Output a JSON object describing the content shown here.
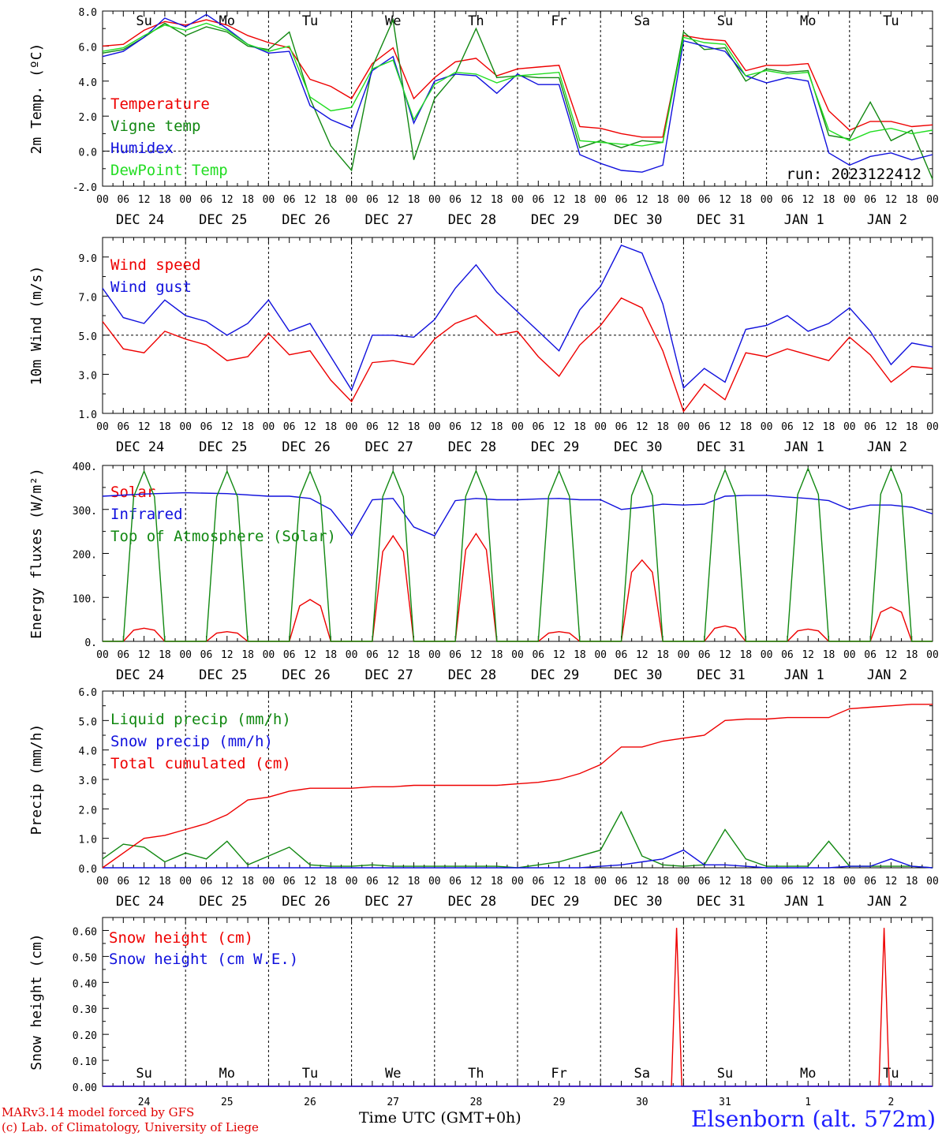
{
  "station": "Elsenborn (alt. 572m)",
  "credit_line1": "MARv3.14 model forced by GFS",
  "credit_line2": "(c) Lab. of Climatology, University of Liege",
  "x_title": "Time UTC (GMT+0h)",
  "run_label": "run: 2023122412",
  "hour_ticks": [
    "00",
    "06",
    "12",
    "18"
  ],
  "final_tick": "00",
  "dates": [
    "DEC 24",
    "DEC 25",
    "DEC 26",
    "DEC 27",
    "DEC 28",
    "DEC 29",
    "DEC 30",
    "DEC 31",
    "JAN  1",
    "JAN  2"
  ],
  "weekdays": [
    {
      "label": "Su",
      "color": "#e00000"
    },
    {
      "label": "Mo",
      "color": "#000000"
    },
    {
      "label": "Tu",
      "color": "#000000"
    },
    {
      "label": "We",
      "color": "#000000"
    },
    {
      "label": "Th",
      "color": "#000000"
    },
    {
      "label": "Fr",
      "color": "#000000"
    },
    {
      "label": "Sa",
      "color": "#e00000"
    },
    {
      "label": "Su",
      "color": "#e00000"
    },
    {
      "label": "Mo",
      "color": "#000000"
    },
    {
      "label": "Tu",
      "color": "#000000"
    }
  ],
  "day_numbers": [
    "24",
    "25",
    "26",
    "27",
    "28",
    "29",
    "30",
    "31",
    "1",
    "2"
  ],
  "colors": {
    "red": "#ee0000",
    "green": "#118811",
    "blue": "#1010dd",
    "lightgreen": "#22dd22"
  },
  "chart_data": [
    {
      "type": "line",
      "ylabel": "2m Temp. (ºC)",
      "ylim": [
        -2,
        8
      ],
      "yticks": [
        -2,
        0,
        2,
        4,
        6,
        8
      ],
      "tick_format": "0.0",
      "dashed_y": 0,
      "x_hours": [
        0,
        6,
        12,
        18,
        24,
        30,
        36,
        42,
        48,
        54,
        60,
        66,
        72,
        78,
        84,
        90,
        96,
        102,
        108,
        114,
        120,
        126,
        132,
        138,
        144,
        150,
        156,
        162,
        168,
        174,
        180,
        186,
        192,
        198,
        204,
        210,
        216,
        222,
        228,
        234,
        240
      ],
      "series": [
        {
          "name": "Temperature",
          "color": "#ee0000",
          "values": [
            6.0,
            6.1,
            6.9,
            7.4,
            7.2,
            7.5,
            7.2,
            6.6,
            6.2,
            5.9,
            4.1,
            3.7,
            3.0,
            5.0,
            5.9,
            3.0,
            4.2,
            5.1,
            5.3,
            4.3,
            4.7,
            4.8,
            4.9,
            1.4,
            1.3,
            1.0,
            0.8,
            0.8,
            6.6,
            6.4,
            6.3,
            4.6,
            4.9,
            4.9,
            5.0,
            2.3,
            1.2,
            1.7,
            1.7,
            1.4,
            1.5
          ]
        },
        {
          "name": "Vigne temp",
          "color": "#118811",
          "values": [
            5.6,
            5.8,
            6.5,
            7.3,
            6.6,
            7.1,
            6.8,
            6.0,
            5.8,
            6.8,
            3.0,
            0.3,
            -1.1,
            4.8,
            7.5,
            -0.5,
            3.0,
            4.4,
            7.0,
            4.2,
            4.3,
            4.2,
            4.2,
            0.2,
            0.6,
            0.2,
            0.6,
            0.5,
            6.8,
            5.8,
            5.9,
            4.0,
            4.7,
            4.5,
            4.6,
            0.9,
            0.7,
            2.8,
            0.6,
            1.2,
            -1.6
          ]
        },
        {
          "name": "Humidex",
          "color": "#1010dd",
          "values": [
            5.4,
            5.7,
            6.5,
            7.6,
            7.1,
            7.8,
            7.0,
            6.1,
            5.6,
            5.7,
            2.6,
            1.8,
            1.3,
            4.6,
            5.4,
            1.6,
            4.0,
            4.4,
            4.3,
            3.3,
            4.4,
            3.8,
            3.8,
            -0.2,
            -0.7,
            -1.1,
            -1.2,
            -0.8,
            6.3,
            6.0,
            5.7,
            4.3,
            3.9,
            4.2,
            4.0,
            -0.1,
            -0.8,
            -0.3,
            -0.1,
            -0.5,
            -0.2
          ]
        },
        {
          "name": "DewPoint Temp",
          "color": "#22dd22",
          "values": [
            5.7,
            5.9,
            6.6,
            7.2,
            6.9,
            7.3,
            6.9,
            6.1,
            5.7,
            6.0,
            3.1,
            2.3,
            2.5,
            4.7,
            5.2,
            1.8,
            3.8,
            4.5,
            4.4,
            3.9,
            4.3,
            4.4,
            4.5,
            0.6,
            0.5,
            0.4,
            0.3,
            0.5,
            6.5,
            6.2,
            6.1,
            4.3,
            4.6,
            4.4,
            4.5,
            1.2,
            0.6,
            1.1,
            1.3,
            1.0,
            1.2
          ]
        }
      ]
    },
    {
      "type": "line",
      "ylabel": "10m Wind (m/s)",
      "ylim": [
        1,
        10
      ],
      "yticks": [
        1,
        3,
        5,
        7,
        9
      ],
      "tick_format": "0.0",
      "dashed_y": 5,
      "x_hours": [
        0,
        6,
        12,
        18,
        24,
        30,
        36,
        42,
        48,
        54,
        60,
        66,
        72,
        78,
        84,
        90,
        96,
        102,
        108,
        114,
        120,
        126,
        132,
        138,
        144,
        150,
        156,
        162,
        168,
        174,
        180,
        186,
        192,
        198,
        204,
        210,
        216,
        222,
        228,
        234,
        240
      ],
      "series": [
        {
          "name": "Wind speed",
          "color": "#ee0000",
          "values": [
            5.7,
            4.3,
            4.1,
            5.2,
            4.8,
            4.5,
            3.7,
            3.9,
            5.1,
            4.0,
            4.2,
            2.7,
            1.6,
            3.6,
            3.7,
            3.5,
            4.8,
            5.6,
            6.0,
            5.0,
            5.2,
            3.9,
            2.9,
            4.5,
            5.5,
            6.9,
            6.4,
            4.2,
            1.1,
            2.5,
            1.7,
            4.1,
            3.9,
            4.3,
            4.0,
            3.7,
            4.9,
            4.0,
            2.6,
            3.4,
            3.3
          ]
        },
        {
          "name": "Wind gust",
          "color": "#1010dd",
          "values": [
            7.4,
            5.9,
            5.6,
            6.8,
            6.0,
            5.7,
            5.0,
            5.6,
            6.8,
            5.2,
            5.6,
            3.9,
            2.2,
            5.0,
            5.0,
            4.9,
            5.8,
            7.4,
            8.6,
            7.2,
            6.2,
            5.2,
            4.2,
            6.3,
            7.5,
            9.6,
            9.2,
            6.6,
            2.3,
            3.3,
            2.6,
            5.3,
            5.5,
            6.0,
            5.2,
            5.6,
            6.4,
            5.2,
            3.5,
            4.6,
            4.4
          ]
        }
      ]
    },
    {
      "type": "line",
      "ylabel": "Energy fluxes (W/m²)",
      "ylim": [
        0,
        400
      ],
      "yticks": [
        0,
        100,
        200,
        300,
        400
      ],
      "tick_format": "100.",
      "dashed_y": null,
      "series": [
        {
          "name": "Solar",
          "color": "#ee0000",
          "peaks": [
            30,
            22,
            95,
            240,
            245,
            22,
            185,
            35,
            28,
            78
          ]
        },
        {
          "name": "Infrared",
          "color": "#1010dd",
          "x_hours": [
            0,
            12,
            24,
            36,
            48,
            54,
            60,
            66,
            72,
            78,
            84,
            90,
            96,
            102,
            108,
            114,
            120,
            126,
            132,
            138,
            144,
            150,
            156,
            162,
            168,
            174,
            180,
            186,
            192,
            198,
            204,
            210,
            216,
            222,
            228,
            234,
            240
          ],
          "values": [
            330,
            335,
            338,
            336,
            330,
            330,
            325,
            300,
            240,
            322,
            325,
            260,
            240,
            320,
            325,
            322,
            322,
            324,
            325,
            322,
            322,
            300,
            305,
            312,
            310,
            312,
            330,
            332,
            332,
            328,
            325,
            320,
            300,
            310,
            310,
            305,
            290
          ]
        },
        {
          "name": "Top of Atmosphere (Solar)",
          "color": "#118811",
          "peaks": [
            387,
            387,
            387,
            387,
            388,
            388,
            390,
            390,
            393,
            394
          ]
        }
      ]
    },
    {
      "type": "line",
      "ylabel": "Precip (mm/h)",
      "ylim": [
        0,
        6
      ],
      "yticks": [
        0,
        1,
        2,
        3,
        4,
        5,
        6
      ],
      "tick_format": "0.0",
      "dashed_y": null,
      "x_hours": [
        0,
        6,
        12,
        18,
        24,
        30,
        36,
        42,
        48,
        54,
        60,
        66,
        72,
        78,
        84,
        90,
        96,
        102,
        108,
        114,
        120,
        126,
        132,
        138,
        144,
        150,
        156,
        162,
        168,
        174,
        180,
        186,
        192,
        198,
        204,
        210,
        216,
        222,
        228,
        234,
        240
      ],
      "series": [
        {
          "name": "Liquid precip (mm/h)",
          "color": "#118811",
          "values": [
            0.3,
            0.8,
            0.7,
            0.2,
            0.5,
            0.3,
            0.9,
            0.1,
            0.4,
            0.7,
            0.1,
            0.05,
            0.05,
            0.1,
            0.05,
            0.05,
            0.05,
            0.05,
            0.05,
            0.05,
            0.0,
            0.1,
            0.2,
            0.4,
            0.6,
            1.9,
            0.4,
            0.1,
            0.05,
            0.1,
            1.3,
            0.3,
            0.05,
            0.05,
            0.05,
            0.9,
            0.05,
            0.05,
            0.05,
            0.05,
            0.0
          ]
        },
        {
          "name": "Snow precip (mm/h)",
          "color": "#1010dd",
          "values": [
            0,
            0,
            0,
            0,
            0,
            0,
            0,
            0,
            0,
            0,
            0,
            0,
            0,
            0,
            0,
            0,
            0,
            0,
            0,
            0,
            0,
            0,
            0,
            0,
            0.05,
            0.1,
            0.2,
            0.3,
            0.6,
            0.1,
            0.1,
            0.05,
            0,
            0,
            0,
            0,
            0.05,
            0.05,
            0.3,
            0.05,
            0
          ]
        },
        {
          "name": "Total cumulated (cm)",
          "color": "#ee0000",
          "values": [
            0.0,
            0.5,
            1.0,
            1.1,
            1.3,
            1.5,
            1.8,
            2.3,
            2.4,
            2.6,
            2.7,
            2.7,
            2.7,
            2.75,
            2.75,
            2.8,
            2.8,
            2.8,
            2.8,
            2.8,
            2.85,
            2.9,
            3.0,
            3.2,
            3.5,
            4.1,
            4.1,
            4.3,
            4.4,
            4.5,
            5.0,
            5.05,
            5.05,
            5.1,
            5.1,
            5.1,
            5.4,
            5.45,
            5.5,
            5.55,
            5.55
          ]
        }
      ]
    },
    {
      "type": "line",
      "ylabel": "Snow height (cm)",
      "ylim": [
        0,
        0.65
      ],
      "yticks": [
        0,
        0.1,
        0.2,
        0.3,
        0.4,
        0.5,
        0.6
      ],
      "tick_format": "0.00",
      "dashed_y": null,
      "series": [
        {
          "name": "Snow height (cm)",
          "color": "#ee0000",
          "spikes": [
            {
              "hour": 166,
              "value": 0.61
            },
            {
              "hour": 226,
              "value": 0.61
            }
          ]
        },
        {
          "name": "Snow height (cm W.E.)",
          "color": "#1010dd",
          "spikes": []
        }
      ]
    }
  ]
}
